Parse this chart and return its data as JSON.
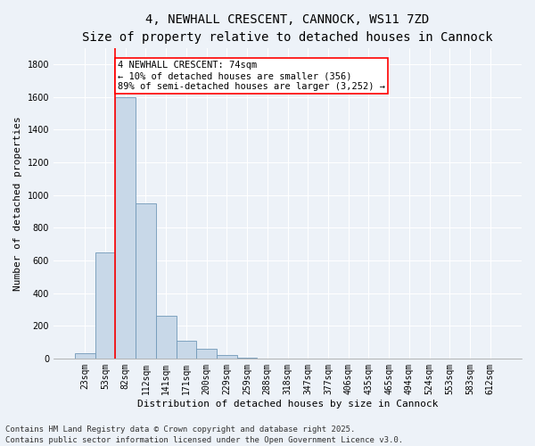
{
  "title_line1": "4, NEWHALL CRESCENT, CANNOCK, WS11 7ZD",
  "title_line2": "Size of property relative to detached houses in Cannock",
  "xlabel": "Distribution of detached houses by size in Cannock",
  "ylabel": "Number of detached properties",
  "categories": [
    "23sqm",
    "53sqm",
    "82sqm",
    "112sqm",
    "141sqm",
    "171sqm",
    "200sqm",
    "229sqm",
    "259sqm",
    "288sqm",
    "318sqm",
    "347sqm",
    "377sqm",
    "406sqm",
    "435sqm",
    "465sqm",
    "494sqm",
    "524sqm",
    "553sqm",
    "583sqm",
    "612sqm"
  ],
  "values": [
    30,
    650,
    1600,
    950,
    260,
    110,
    60,
    20,
    5,
    0,
    0,
    0,
    0,
    0,
    0,
    0,
    0,
    0,
    0,
    0,
    0
  ],
  "bar_color": "#c8d8e8",
  "bar_edge_color": "#7098b8",
  "annotation_text": "4 NEWHALL CRESCENT: 74sqm\n← 10% of detached houses are smaller (356)\n89% of semi-detached houses are larger (3,252) →",
  "annotation_box_color": "white",
  "annotation_box_edge_color": "red",
  "vline_color": "red",
  "vline_x": 1.5,
  "ylim": [
    0,
    1900
  ],
  "yticks": [
    0,
    200,
    400,
    600,
    800,
    1000,
    1200,
    1400,
    1600,
    1800
  ],
  "footer_line1": "Contains HM Land Registry data © Crown copyright and database right 2025.",
  "footer_line2": "Contains public sector information licensed under the Open Government Licence v3.0.",
  "background_color": "#edf2f8",
  "plot_background_color": "#edf2f8",
  "grid_color": "#ffffff",
  "title_fontsize": 10,
  "subtitle_fontsize": 9,
  "axis_label_fontsize": 8,
  "tick_fontsize": 7,
  "annotation_fontsize": 7.5,
  "footer_fontsize": 6.5
}
